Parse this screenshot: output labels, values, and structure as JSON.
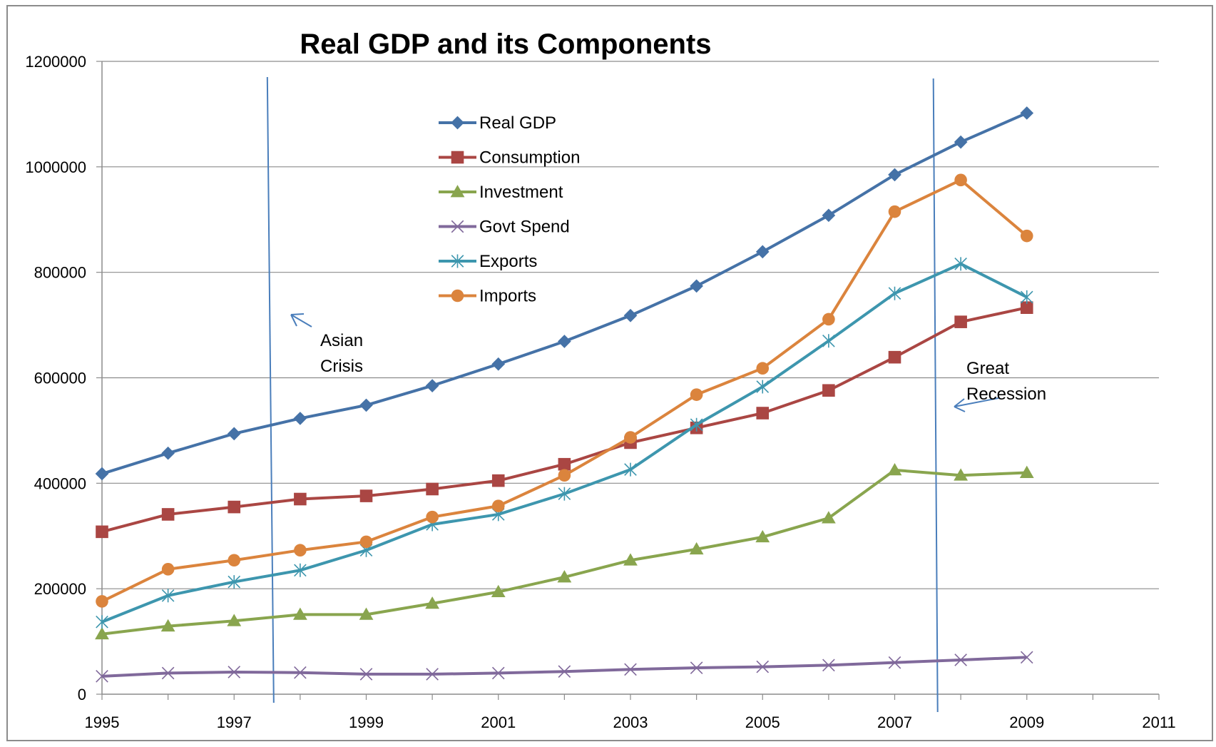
{
  "chart_data": {
    "type": "line",
    "title": "Real GDP and its Components",
    "xlabel": "",
    "ylabel": "",
    "xlim": [
      1995,
      2011
    ],
    "ylim": [
      0,
      1200000
    ],
    "x_ticks": [
      1995,
      1997,
      1999,
      2001,
      2003,
      2005,
      2007,
      2009,
      2011
    ],
    "y_ticks": [
      0,
      200000,
      400000,
      600000,
      800000,
      1000000,
      1200000
    ],
    "y_tick_labels": [
      "0",
      "200000",
      "400000",
      "600000",
      "800000",
      "1000000",
      "1200000"
    ],
    "x_tick_labels": [
      "1995",
      "1997",
      "1999",
      "2001",
      "2003",
      "2005",
      "2007",
      "2009",
      "2011"
    ],
    "grid": "horizontal",
    "legend_position": "top-center",
    "x": [
      1995,
      1996,
      1997,
      1998,
      1999,
      2000,
      2001,
      2002,
      2003,
      2004,
      2005,
      2006,
      2007,
      2008,
      2009
    ],
    "series": [
      {
        "name": "Real GDP",
        "color": "#4572A7",
        "marker": "diamond",
        "values": [
          418000,
          457000,
          494000,
          523000,
          548000,
          585000,
          626000,
          669000,
          718000,
          774000,
          839000,
          908000,
          985000,
          1047000,
          1102000
        ]
      },
      {
        "name": "Consumption",
        "color": "#AA4643",
        "marker": "square",
        "values": [
          308000,
          341000,
          355000,
          370000,
          376000,
          389000,
          405000,
          436000,
          477000,
          505000,
          533000,
          576000,
          639000,
          706000,
          733000
        ]
      },
      {
        "name": "Investment",
        "color": "#89A54E",
        "marker": "triangle",
        "values": [
          114000,
          129000,
          139000,
          151000,
          151000,
          172000,
          194000,
          222000,
          254000,
          275000,
          298000,
          334000,
          425000,
          415000,
          420000
        ]
      },
      {
        "name": "Govt Spend",
        "color": "#80699B",
        "marker": "x",
        "values": [
          34000,
          40000,
          42000,
          41000,
          38000,
          38000,
          40000,
          43000,
          47000,
          50000,
          52000,
          55000,
          60000,
          65000,
          70000
        ]
      },
      {
        "name": "Exports",
        "color": "#3D96AE",
        "marker": "star",
        "values": [
          137000,
          187000,
          213000,
          235000,
          273000,
          322000,
          341000,
          380000,
          426000,
          511000,
          583000,
          670000,
          760000,
          816000,
          753000
        ]
      },
      {
        "name": "Imports",
        "color": "#DB843D",
        "marker": "circle",
        "values": [
          176000,
          237000,
          254000,
          273000,
          289000,
          336000,
          357000,
          415000,
          487000,
          568000,
          618000,
          711000,
          915000,
          975000,
          869000
        ]
      }
    ],
    "annotations": [
      {
        "text_lines": [
          "Asian",
          "Crisis"
        ],
        "vline_x": 1997.6
      },
      {
        "text_lines": [
          "Great",
          "Recession"
        ],
        "vline_x": 2007.65
      }
    ]
  }
}
